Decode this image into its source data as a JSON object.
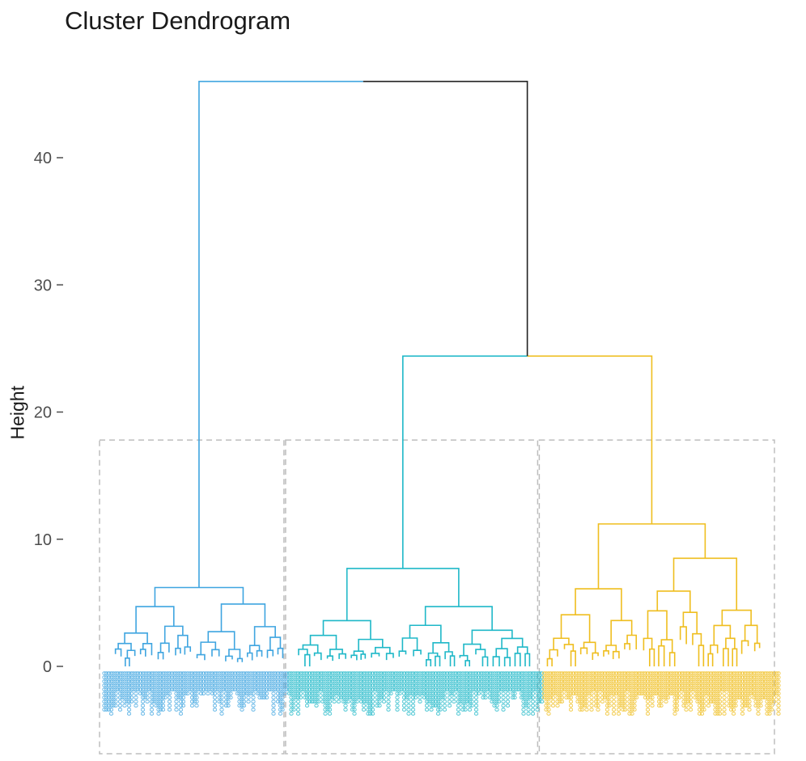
{
  "chart_data": {
    "type": "dendrogram",
    "title": "Cluster Dendrogram",
    "xlabel": "",
    "ylabel": "Height",
    "ylim": [
      0,
      46
    ],
    "yticks": [
      0,
      10,
      20,
      30,
      40
    ],
    "grid": false,
    "cut_height": 17.8,
    "colors": {
      "cluster1": "#3fa5e0",
      "cluster2": "#1fb8c8",
      "cluster3": "#efbe1f",
      "root": "#222222",
      "box": "#bdbdbd"
    },
    "clusters": [
      {
        "color_key": "cluster1",
        "leaf_start": 0.0,
        "leaf_end": 0.275,
        "merge_height": 6.2,
        "sub_merges": [
          {
            "x0": 0.02,
            "x1": 0.14,
            "h": 4.7
          },
          {
            "x0": 0.14,
            "x1": 0.275,
            "h": 4.9
          }
        ]
      },
      {
        "color_key": "cluster2",
        "leaf_start": 0.275,
        "leaf_end": 0.65,
        "merge_height": 7.7,
        "sub_merges": [
          {
            "x0": 0.29,
            "x1": 0.44,
            "h": 3.6
          },
          {
            "x0": 0.44,
            "x1": 0.64,
            "h": 4.7
          }
        ]
      },
      {
        "color_key": "cluster3",
        "leaf_start": 0.65,
        "leaf_end": 1.0,
        "merge_height": 11.2,
        "sub_merges": [
          {
            "x0": 0.66,
            "x1": 0.8,
            "h": 6.1
          },
          {
            "x0": 0.8,
            "x1": 0.98,
            "h": 8.5
          }
        ]
      }
    ],
    "top_merges": [
      {
        "left": "cluster2",
        "right": "cluster3",
        "height": 24.4
      },
      {
        "left": "cluster1",
        "right": "cluster2+cluster3",
        "height": 46.0
      }
    ],
    "leaf_count": 300,
    "leaf_label_text": "o"
  }
}
